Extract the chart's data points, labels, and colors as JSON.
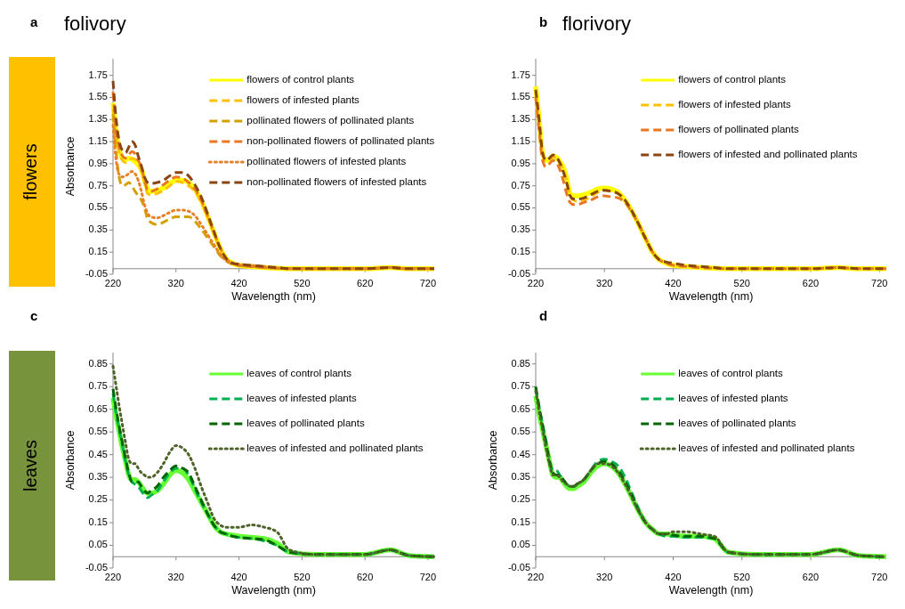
{
  "chart_data": [
    {
      "type": "line",
      "title": "folivory",
      "annotations": [
        "a",
        "flowers"
      ],
      "xlabel": "Wavelength (nm)",
      "ylabel": "Absorbance",
      "legend": "top right",
      "grid": false,
      "xlim": [
        220,
        730
      ],
      "xticks": [
        220,
        320,
        420,
        520,
        620,
        720
      ],
      "ylim": [
        -0.05,
        1.9
      ],
      "yticks": [
        -0.05,
        0.15,
        0.35,
        0.55,
        0.75,
        0.95,
        1.15,
        1.35,
        1.55,
        1.75
      ],
      "x": [
        220,
        225,
        230,
        235,
        240,
        245,
        250,
        255,
        260,
        265,
        270,
        275,
        280,
        290,
        300,
        310,
        320,
        330,
        340,
        350,
        360,
        370,
        380,
        390,
        400,
        410,
        420,
        440,
        460,
        480,
        500,
        540,
        580,
        620,
        660,
        690,
        730
      ],
      "series": [
        {
          "name": "flowers of control plants",
          "color": "#ffff00",
          "line_style": "solid",
          "values": [
            1.5,
            1.25,
            1.08,
            1.0,
            0.99,
            1.0,
            0.99,
            0.97,
            0.94,
            0.9,
            0.8,
            0.72,
            0.7,
            0.71,
            0.73,
            0.77,
            0.8,
            0.8,
            0.78,
            0.72,
            0.62,
            0.48,
            0.33,
            0.19,
            0.09,
            0.05,
            0.03,
            0.02,
            0.01,
            0.005,
            0,
            0,
            0,
            0,
            0.01,
            0,
            0
          ]
        },
        {
          "name": "flowers of infested plants",
          "color": "#ffc000",
          "line_style": "dashed",
          "values": [
            1.45,
            1.2,
            1.05,
            0.98,
            0.96,
            0.98,
            1.0,
            0.99,
            0.95,
            0.88,
            0.78,
            0.68,
            0.67,
            0.68,
            0.71,
            0.75,
            0.79,
            0.78,
            0.75,
            0.7,
            0.6,
            0.47,
            0.32,
            0.18,
            0.09,
            0.05,
            0.03,
            0.02,
            0.01,
            0.005,
            0,
            0,
            0,
            0,
            0.01,
            0,
            0
          ]
        },
        {
          "name": "pollinated flowers of pollinated plants",
          "color": "#d4a000",
          "line_style": "dashed",
          "values": [
            1.4,
            1.05,
            0.82,
            0.75,
            0.76,
            0.78,
            0.75,
            0.7,
            0.66,
            0.62,
            0.55,
            0.45,
            0.42,
            0.4,
            0.42,
            0.45,
            0.47,
            0.47,
            0.47,
            0.43,
            0.36,
            0.28,
            0.2,
            0.12,
            0.07,
            0.04,
            0.03,
            0.02,
            0.01,
            0.005,
            0,
            0,
            0,
            0,
            0.01,
            0,
            0
          ]
        },
        {
          "name": "non-pollinated flowers of pollinated plants",
          "color": "#e87722",
          "line_style": "dashed",
          "values": [
            1.6,
            1.25,
            1.1,
            1.02,
            1.0,
            1.03,
            1.06,
            1.04,
            0.98,
            0.92,
            0.8,
            0.71,
            0.7,
            0.72,
            0.76,
            0.8,
            0.83,
            0.82,
            0.78,
            0.72,
            0.62,
            0.48,
            0.33,
            0.19,
            0.09,
            0.05,
            0.03,
            0.02,
            0.01,
            0.005,
            0,
            0,
            0,
            0,
            0.01,
            0,
            0
          ]
        },
        {
          "name": "pollinated flowers of infested plants",
          "color": "#e8802a",
          "line_style": "dotted",
          "values": [
            1.3,
            0.98,
            0.85,
            0.83,
            0.84,
            0.86,
            0.88,
            0.86,
            0.8,
            0.7,
            0.58,
            0.5,
            0.47,
            0.46,
            0.48,
            0.51,
            0.53,
            0.53,
            0.52,
            0.48,
            0.4,
            0.31,
            0.22,
            0.13,
            0.07,
            0.05,
            0.04,
            0.03,
            0.02,
            0.01,
            0,
            0,
            0,
            0,
            0.01,
            0,
            0
          ]
        },
        {
          "name": "non-pollinated flowers of infested plants",
          "color": "#8b4513",
          "line_style": "dashed",
          "values": [
            1.7,
            1.35,
            1.15,
            1.07,
            1.05,
            1.1,
            1.15,
            1.12,
            1.02,
            0.93,
            0.83,
            0.78,
            0.77,
            0.78,
            0.8,
            0.84,
            0.87,
            0.87,
            0.84,
            0.76,
            0.65,
            0.5,
            0.34,
            0.19,
            0.09,
            0.05,
            0.04,
            0.03,
            0.02,
            0.01,
            0,
            0,
            0,
            0,
            0.01,
            0,
            0
          ]
        }
      ]
    },
    {
      "type": "line",
      "title": "florivory",
      "annotations": [
        "b"
      ],
      "xlabel": "Wavelength (nm)",
      "legend": "top right",
      "grid": false,
      "xlim": [
        220,
        730
      ],
      "xticks": [
        220,
        320,
        420,
        520,
        620,
        720
      ],
      "ylim": [
        -0.05,
        1.9
      ],
      "yticks": [
        -0.05,
        0.15,
        0.35,
        0.55,
        0.75,
        0.95,
        1.15,
        1.35,
        1.55,
        1.75
      ],
      "x": [
        220,
        225,
        230,
        235,
        240,
        245,
        250,
        255,
        260,
        265,
        270,
        275,
        280,
        290,
        300,
        310,
        320,
        330,
        340,
        350,
        360,
        370,
        380,
        390,
        400,
        410,
        420,
        440,
        460,
        480,
        500,
        540,
        580,
        620,
        660,
        690,
        730
      ],
      "series": [
        {
          "name": "flowers of control plants",
          "color": "#ffff00",
          "line_style": "solid",
          "values": [
            1.65,
            1.35,
            1.05,
            0.98,
            0.99,
            1.02,
            1.01,
            0.97,
            0.92,
            0.82,
            0.68,
            0.66,
            0.66,
            0.67,
            0.69,
            0.72,
            0.73,
            0.72,
            0.69,
            0.62,
            0.52,
            0.4,
            0.27,
            0.15,
            0.08,
            0.05,
            0.03,
            0.02,
            0.01,
            0.005,
            0,
            0,
            0,
            0,
            0.01,
            0,
            0
          ]
        },
        {
          "name": "flowers of infested plants",
          "color": "#ffc000",
          "line_style": "dashed",
          "values": [
            1.6,
            1.3,
            1.03,
            0.97,
            0.98,
            1.01,
            1.0,
            0.96,
            0.9,
            0.8,
            0.66,
            0.62,
            0.61,
            0.62,
            0.65,
            0.69,
            0.71,
            0.7,
            0.68,
            0.62,
            0.52,
            0.4,
            0.27,
            0.15,
            0.08,
            0.05,
            0.03,
            0.02,
            0.01,
            0.005,
            0,
            0,
            0,
            0,
            0.01,
            0,
            0
          ]
        },
        {
          "name": "flowers of pollinated plants",
          "color": "#e87722",
          "line_style": "dashed",
          "values": [
            1.55,
            1.25,
            0.98,
            0.92,
            0.95,
            0.98,
            0.96,
            0.9,
            0.8,
            0.68,
            0.6,
            0.58,
            0.58,
            0.6,
            0.62,
            0.65,
            0.66,
            0.65,
            0.64,
            0.6,
            0.51,
            0.4,
            0.27,
            0.15,
            0.08,
            0.05,
            0.03,
            0.02,
            0.01,
            0.005,
            0,
            0,
            0,
            0,
            0.01,
            0,
            0
          ]
        },
        {
          "name": "flowers of infested and pollinated plants",
          "color": "#8b4513",
          "line_style": "dashed",
          "values": [
            1.62,
            1.35,
            1.05,
            0.98,
            1.0,
            1.03,
            1.01,
            0.96,
            0.88,
            0.78,
            0.66,
            0.63,
            0.63,
            0.64,
            0.67,
            0.7,
            0.71,
            0.7,
            0.68,
            0.62,
            0.52,
            0.4,
            0.27,
            0.15,
            0.08,
            0.06,
            0.05,
            0.03,
            0.02,
            0.01,
            0,
            0,
            0,
            0,
            0.01,
            0,
            0
          ]
        }
      ]
    },
    {
      "type": "line",
      "annotations": [
        "c",
        "leaves"
      ],
      "xlabel": "Wavelength (nm)",
      "ylabel": "Absorbance",
      "legend": "top right",
      "grid": false,
      "xlim": [
        220,
        730
      ],
      "xticks": [
        220,
        320,
        420,
        520,
        620,
        720
      ],
      "ylim": [
        -0.05,
        0.9
      ],
      "yticks": [
        -0.05,
        0.05,
        0.15,
        0.25,
        0.35,
        0.45,
        0.55,
        0.65,
        0.75,
        0.85
      ],
      "x": [
        220,
        225,
        230,
        235,
        240,
        245,
        250,
        255,
        260,
        265,
        270,
        275,
        280,
        290,
        300,
        310,
        320,
        330,
        340,
        350,
        360,
        370,
        380,
        390,
        400,
        410,
        420,
        440,
        460,
        480,
        500,
        540,
        580,
        620,
        660,
        690,
        730
      ],
      "series": [
        {
          "name": "leaves of control plants",
          "color": "#66ff33",
          "line_style": "solid",
          "values": [
            0.7,
            0.62,
            0.55,
            0.48,
            0.42,
            0.36,
            0.34,
            0.34,
            0.33,
            0.31,
            0.29,
            0.28,
            0.28,
            0.29,
            0.32,
            0.36,
            0.38,
            0.37,
            0.34,
            0.29,
            0.24,
            0.19,
            0.14,
            0.11,
            0.1,
            0.095,
            0.09,
            0.085,
            0.08,
            0.06,
            0.02,
            0.01,
            0.01,
            0.01,
            0.03,
            0.005,
            0
          ]
        },
        {
          "name": "leaves of infested plants",
          "color": "#00b050",
          "line_style": "dashed",
          "values": [
            0.72,
            0.63,
            0.56,
            0.49,
            0.42,
            0.36,
            0.33,
            0.32,
            0.31,
            0.29,
            0.27,
            0.26,
            0.27,
            0.29,
            0.33,
            0.37,
            0.39,
            0.39,
            0.36,
            0.3,
            0.24,
            0.19,
            0.14,
            0.11,
            0.1,
            0.09,
            0.085,
            0.08,
            0.07,
            0.05,
            0.02,
            0.01,
            0.01,
            0.01,
            0.03,
            0.005,
            0
          ]
        },
        {
          "name": "leaves of pollinated plants",
          "color": "#006600",
          "line_style": "dashed",
          "values": [
            0.74,
            0.65,
            0.57,
            0.5,
            0.43,
            0.37,
            0.33,
            0.33,
            0.33,
            0.31,
            0.29,
            0.28,
            0.29,
            0.31,
            0.35,
            0.38,
            0.4,
            0.39,
            0.37,
            0.31,
            0.25,
            0.19,
            0.14,
            0.11,
            0.1,
            0.09,
            0.085,
            0.08,
            0.075,
            0.05,
            0.02,
            0.01,
            0.01,
            0.01,
            0.03,
            0.005,
            0
          ]
        },
        {
          "name": "leaves of infested and pollinated plants",
          "color": "#4f6228",
          "line_style": "dotted",
          "values": [
            0.84,
            0.75,
            0.66,
            0.58,
            0.5,
            0.43,
            0.41,
            0.41,
            0.39,
            0.37,
            0.36,
            0.35,
            0.35,
            0.37,
            0.41,
            0.46,
            0.49,
            0.48,
            0.45,
            0.39,
            0.31,
            0.24,
            0.17,
            0.14,
            0.13,
            0.13,
            0.13,
            0.14,
            0.13,
            0.11,
            0.03,
            0.01,
            0.01,
            0.01,
            0.03,
            0.005,
            0
          ]
        }
      ]
    },
    {
      "type": "line",
      "annotations": [
        "d"
      ],
      "xlabel": "Wavelength (nm)",
      "ylabel": "Absorbance",
      "legend": "top right",
      "grid": false,
      "xlim": [
        220,
        730
      ],
      "xticks": [
        220,
        320,
        420,
        520,
        620,
        720
      ],
      "ylim": [
        -0.05,
        0.9
      ],
      "yticks": [
        -0.05,
        0.05,
        0.15,
        0.25,
        0.35,
        0.45,
        0.55,
        0.65,
        0.75,
        0.85
      ],
      "x": [
        220,
        225,
        230,
        235,
        240,
        245,
        250,
        255,
        260,
        265,
        270,
        275,
        280,
        290,
        300,
        310,
        320,
        330,
        340,
        350,
        360,
        370,
        380,
        390,
        400,
        410,
        420,
        440,
        460,
        480,
        500,
        540,
        580,
        620,
        660,
        690,
        730
      ],
      "series": [
        {
          "name": "leaves of control plants",
          "color": "#66ff33",
          "line_style": "solid",
          "values": [
            0.71,
            0.63,
            0.56,
            0.49,
            0.42,
            0.36,
            0.35,
            0.35,
            0.33,
            0.31,
            0.3,
            0.3,
            0.31,
            0.33,
            0.37,
            0.4,
            0.41,
            0.4,
            0.37,
            0.32,
            0.26,
            0.2,
            0.15,
            0.12,
            0.1,
            0.1,
            0.095,
            0.09,
            0.09,
            0.08,
            0.02,
            0.01,
            0.01,
            0.01,
            0.03,
            0.005,
            0
          ]
        },
        {
          "name": "leaves of infested plants",
          "color": "#00b050",
          "line_style": "dashed",
          "values": [
            0.74,
            0.66,
            0.58,
            0.51,
            0.43,
            0.38,
            0.38,
            0.36,
            0.34,
            0.32,
            0.31,
            0.31,
            0.32,
            0.34,
            0.38,
            0.42,
            0.43,
            0.42,
            0.4,
            0.35,
            0.28,
            0.21,
            0.15,
            0.12,
            0.1,
            0.09,
            0.09,
            0.085,
            0.085,
            0.08,
            0.02,
            0.01,
            0.01,
            0.01,
            0.03,
            0.005,
            0
          ]
        },
        {
          "name": "leaves of pollinated plants",
          "color": "#006600",
          "line_style": "dashed",
          "values": [
            0.75,
            0.66,
            0.58,
            0.5,
            0.42,
            0.37,
            0.36,
            0.36,
            0.34,
            0.32,
            0.31,
            0.31,
            0.32,
            0.34,
            0.38,
            0.41,
            0.42,
            0.41,
            0.38,
            0.33,
            0.27,
            0.2,
            0.15,
            0.12,
            0.1,
            0.1,
            0.095,
            0.09,
            0.09,
            0.08,
            0.02,
            0.01,
            0.01,
            0.01,
            0.03,
            0.005,
            0
          ]
        },
        {
          "name": "leaves of infested and pollinated plants",
          "color": "#4f6228",
          "line_style": "dotted",
          "values": [
            0.73,
            0.64,
            0.56,
            0.48,
            0.41,
            0.36,
            0.36,
            0.35,
            0.33,
            0.32,
            0.31,
            0.31,
            0.32,
            0.34,
            0.38,
            0.41,
            0.41,
            0.4,
            0.37,
            0.32,
            0.26,
            0.2,
            0.15,
            0.12,
            0.1,
            0.1,
            0.11,
            0.11,
            0.1,
            0.09,
            0.02,
            0.01,
            0.01,
            0.01,
            0.03,
            0.005,
            0
          ]
        }
      ]
    }
  ]
}
